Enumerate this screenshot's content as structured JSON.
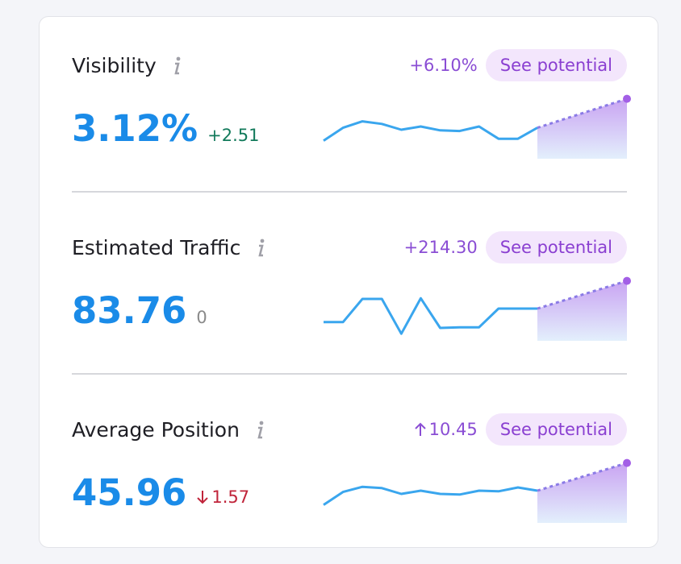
{
  "metrics": [
    {
      "title": "Visibility",
      "value": "3.12%",
      "change": "+2.51",
      "change_tone": "positive",
      "potential": "+6.10%",
      "button": "See potential",
      "trend": [
        28,
        48,
        58,
        54,
        45,
        50,
        44,
        43,
        50,
        31,
        31,
        48
      ],
      "target": 93
    },
    {
      "title": "Estimated Traffic",
      "value": "83.76",
      "change": "0",
      "change_tone": "neutral",
      "potential": "+214.30",
      "button": "See potential",
      "trend": [
        29,
        29,
        65,
        65,
        11,
        66,
        20,
        21,
        21,
        50,
        50,
        50
      ],
      "target": 93
    },
    {
      "title": "Average Position",
      "value": "45.96",
      "change": "1.57",
      "change_tone": "negative",
      "change_direction": "down",
      "potential": "10.45",
      "potential_direction": "up",
      "button": "See potential",
      "trend": [
        28,
        48,
        56,
        54,
        45,
        50,
        45,
        44,
        50,
        49,
        55,
        50
      ],
      "target": 93
    }
  ]
}
